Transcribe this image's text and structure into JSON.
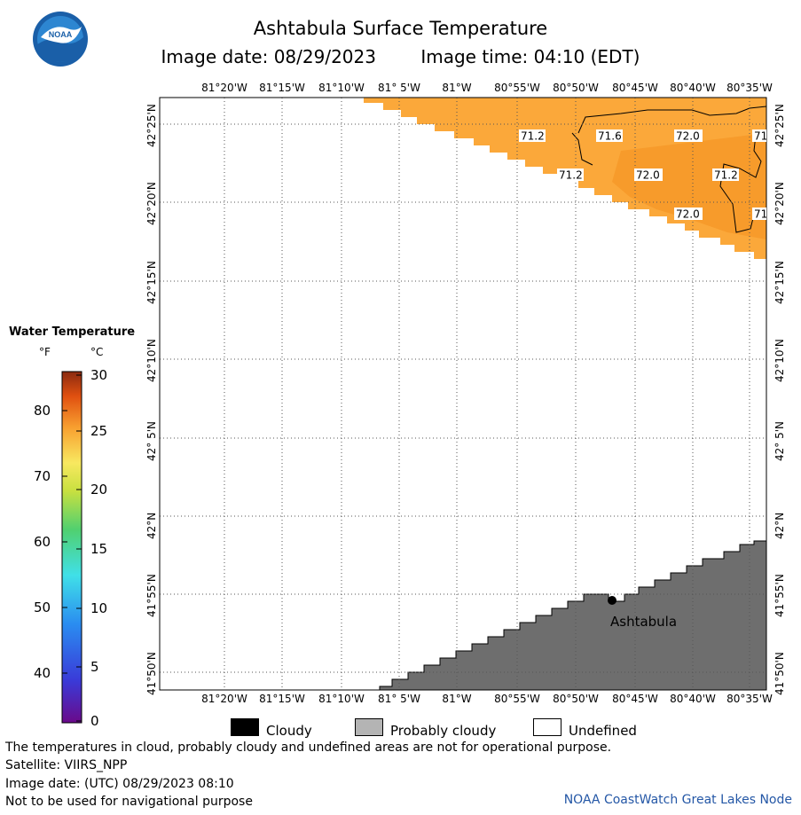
{
  "title": "Ashtabula Surface Temperature",
  "image_date": "Image date: 08/29/2023",
  "image_time": "Image time: 04:10 (EDT)",
  "logo_text": "NOAA",
  "map": {
    "lon_labels": [
      "81°20'W",
      "81°15'W",
      "81°10'W",
      "81° 5'W",
      "81°W",
      "80°55'W",
      "80°50'W",
      "80°45'W",
      "80°40'W",
      "80°35'W"
    ],
    "lat_labels": [
      "42°25'N",
      "42°20'N",
      "42°15'N",
      "42°10'N",
      "42° 5'N",
      "42°N",
      "41°55'N",
      "41°50'N"
    ],
    "temp_labels": [
      "71.2",
      "71.6",
      "72.0",
      "71",
      "71.2",
      "72.0",
      "71.2",
      "72.0",
      "71"
    ],
    "city": "Ashtabula",
    "colors": {
      "water_warm": "#fba83a",
      "water_warmer": "#f79b2b",
      "cloud_prob": "#6e6e6e",
      "undefined": "#ffffff"
    }
  },
  "legend": {
    "title": "Water Temperature",
    "unit_f": "°F",
    "unit_c": "°C",
    "f_ticks": [
      "80",
      "70",
      "60",
      "50",
      "40"
    ],
    "c_ticks": [
      "30",
      "25",
      "20",
      "15",
      "10",
      "5",
      "0"
    ],
    "items": [
      {
        "label": "Cloudy",
        "color": "#000000"
      },
      {
        "label": "Probably cloudy",
        "color": "#b4b4b4"
      },
      {
        "label": "Undefined",
        "color": "#ffffff"
      }
    ]
  },
  "footer": {
    "note": "The temperatures in cloud, probably cloudy and undefined areas are not for operational purpose.",
    "satellite": "Satellite: VIIRS_NPP",
    "utc_date": "Image date: (UTC) 08/29/2023  08:10",
    "nav_warning": "Not to be used for navigational purpose",
    "credit": "NOAA CoastWatch Great Lakes Node"
  }
}
